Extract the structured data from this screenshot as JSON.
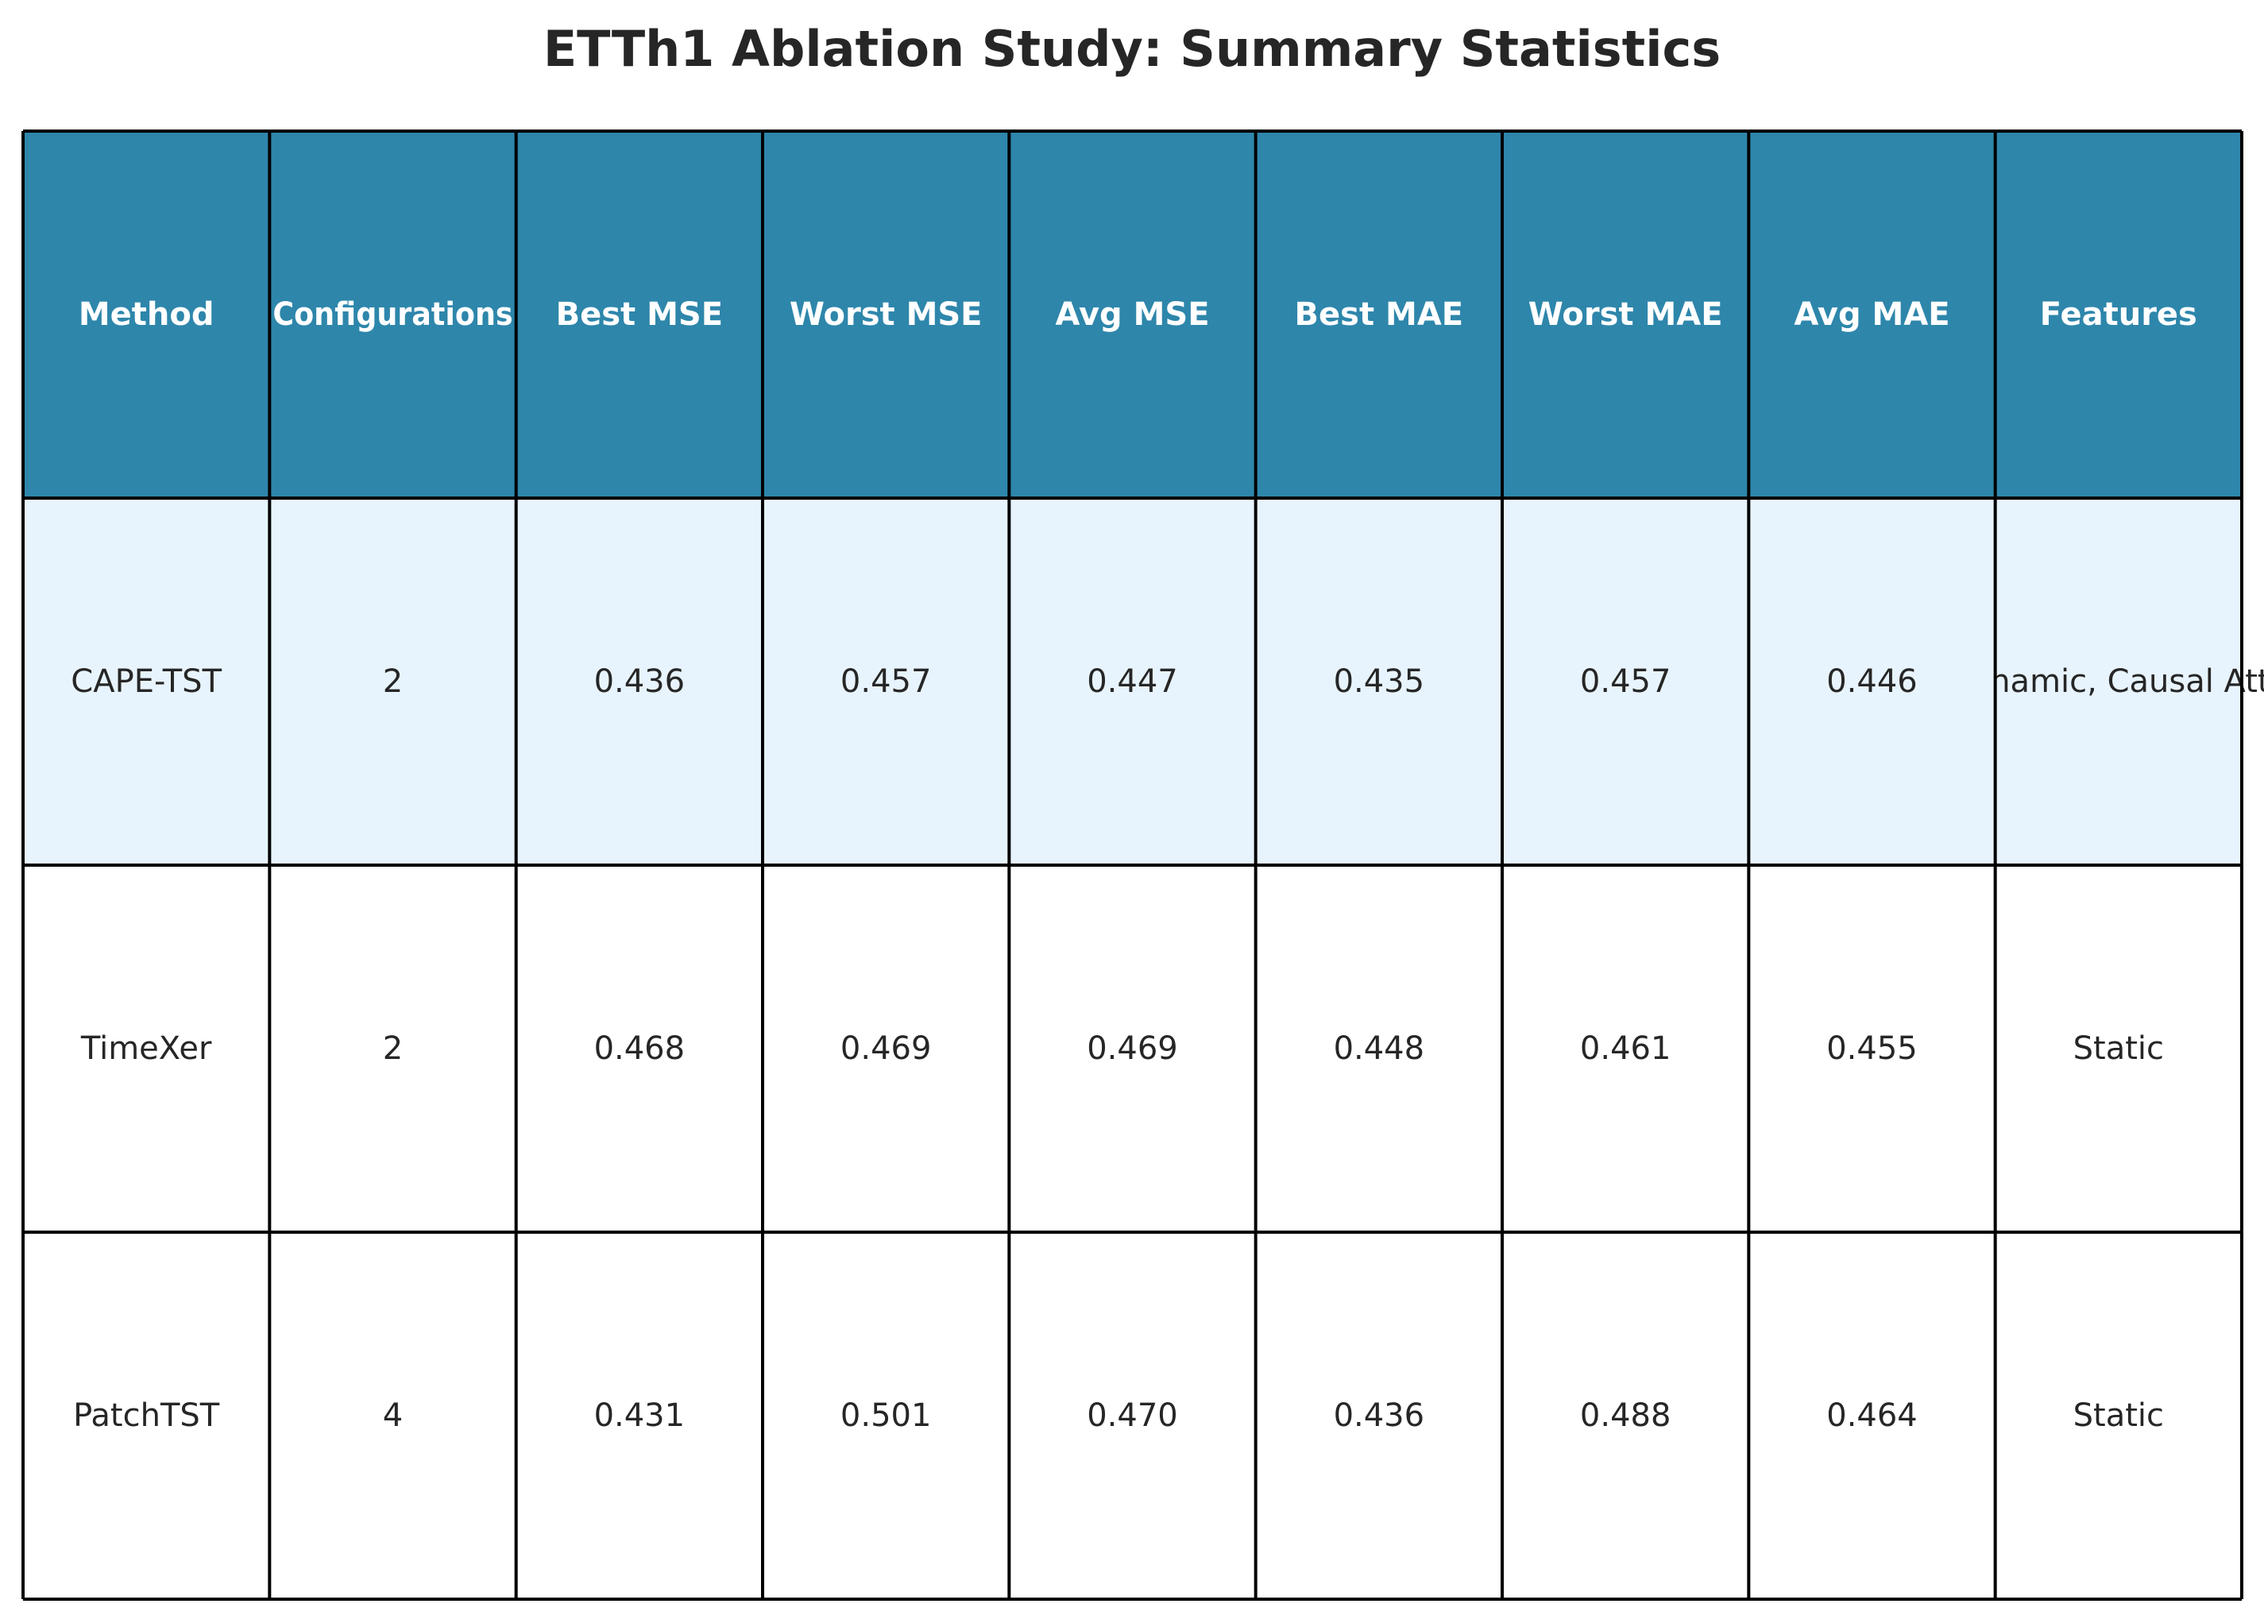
{
  "chart_data": {
    "type": "table",
    "title": "ETTh1 Ablation Study: Summary Statistics",
    "columns": [
      "Method",
      "Configurations",
      "Best MSE",
      "Worst MSE",
      "Avg MSE",
      "Best MAE",
      "Worst MAE",
      "Avg MAE",
      "Features"
    ],
    "rows": [
      [
        "CAPE-TST",
        "2",
        "0.436",
        "0.457",
        "0.447",
        "0.435",
        "0.457",
        "0.446",
        "Dynamic, Causal Attn"
      ],
      [
        "TimeXer",
        "2",
        "0.468",
        "0.469",
        "0.469",
        "0.448",
        "0.461",
        "0.455",
        "Static"
      ],
      [
        "PatchTST",
        "4",
        "0.431",
        "0.501",
        "0.470",
        "0.436",
        "0.488",
        "0.464",
        "Static"
      ]
    ],
    "colors": {
      "header_bg": "#2E86AB",
      "header_text": "#FFFFFF",
      "highlight_row_bg": "#E8F4FD",
      "row_bg": "#FFFFFF",
      "cell_text": "#262626",
      "grid": "#000000"
    }
  }
}
